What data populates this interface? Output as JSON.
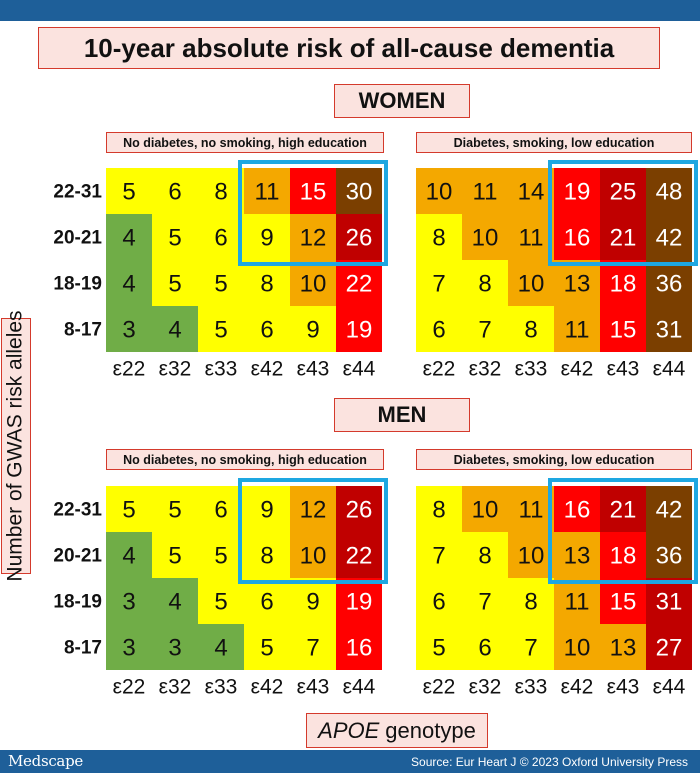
{
  "title": "10-year absolute risk of all-cause dementia",
  "sections": {
    "women": "WOMEN",
    "men": "MEN"
  },
  "y_axis_label": "Number of GWAS risk alleles",
  "x_axis_label": {
    "italic": "APOE",
    "rest": "genotype"
  },
  "footer": {
    "logo": "Medscape",
    "source": "Source: Eur Heart J © 2023 Oxford University Press"
  },
  "colors": {
    "green": "#70ad47",
    "yellow": "#ffff00",
    "orange": "#f4a800",
    "red": "#ff0000",
    "darkred": "#c00000",
    "brown": "#7b3f00",
    "highlight": "#1ea7e1",
    "header": "#1e5f99"
  },
  "chart_data": [
    {
      "type": "heatmap",
      "group": "WOMEN",
      "subtitle": "No diabetes, no smoking, high education",
      "rows": [
        "22-31",
        "20-21",
        "18-19",
        "8-17"
      ],
      "columns": [
        "ε22",
        "ε32",
        "ε33",
        "ε42",
        "ε43",
        "ε44"
      ],
      "values": [
        [
          5,
          6,
          8,
          11,
          15,
          30
        ],
        [
          4,
          5,
          6,
          9,
          12,
          26
        ],
        [
          4,
          5,
          5,
          8,
          10,
          22
        ],
        [
          3,
          4,
          5,
          6,
          9,
          19
        ]
      ],
      "cell_colors": [
        [
          "yellow",
          "yellow",
          "yellow",
          "orange",
          "red",
          "brown"
        ],
        [
          "green",
          "yellow",
          "yellow",
          "yellow",
          "orange",
          "darkred"
        ],
        [
          "green",
          "yellow",
          "yellow",
          "yellow",
          "orange",
          "red"
        ],
        [
          "green",
          "green",
          "yellow",
          "yellow",
          "yellow",
          "red"
        ]
      ],
      "highlight": {
        "rows": [
          0,
          1
        ],
        "columns": [
          3,
          5
        ]
      }
    },
    {
      "type": "heatmap",
      "group": "WOMEN",
      "subtitle": "Diabetes, smoking, low education",
      "rows": [
        "22-31",
        "20-21",
        "18-19",
        "8-17"
      ],
      "columns": [
        "ε22",
        "ε32",
        "ε33",
        "ε42",
        "ε43",
        "ε44"
      ],
      "values": [
        [
          10,
          11,
          14,
          19,
          25,
          48
        ],
        [
          8,
          10,
          11,
          16,
          21,
          42
        ],
        [
          7,
          8,
          10,
          13,
          18,
          36
        ],
        [
          6,
          7,
          8,
          11,
          15,
          31
        ]
      ],
      "cell_colors": [
        [
          "orange",
          "orange",
          "orange",
          "red",
          "darkred",
          "brown"
        ],
        [
          "yellow",
          "orange",
          "orange",
          "red",
          "darkred",
          "brown"
        ],
        [
          "yellow",
          "yellow",
          "orange",
          "orange",
          "red",
          "brown"
        ],
        [
          "yellow",
          "yellow",
          "yellow",
          "orange",
          "red",
          "brown"
        ]
      ],
      "highlight": {
        "rows": [
          0,
          1
        ],
        "columns": [
          3,
          5
        ]
      }
    },
    {
      "type": "heatmap",
      "group": "MEN",
      "subtitle": "No diabetes, no smoking, high education",
      "rows": [
        "22-31",
        "20-21",
        "18-19",
        "8-17"
      ],
      "columns": [
        "ε22",
        "ε32",
        "ε33",
        "ε42",
        "ε43",
        "ε44"
      ],
      "values": [
        [
          5,
          5,
          6,
          9,
          12,
          26
        ],
        [
          4,
          5,
          5,
          8,
          10,
          22
        ],
        [
          3,
          4,
          5,
          6,
          9,
          19
        ],
        [
          3,
          3,
          4,
          5,
          7,
          16
        ]
      ],
      "cell_colors": [
        [
          "yellow",
          "yellow",
          "yellow",
          "yellow",
          "orange",
          "darkred"
        ],
        [
          "green",
          "yellow",
          "yellow",
          "yellow",
          "orange",
          "darkred"
        ],
        [
          "green",
          "green",
          "yellow",
          "yellow",
          "yellow",
          "red"
        ],
        [
          "green",
          "green",
          "green",
          "yellow",
          "yellow",
          "red"
        ]
      ],
      "highlight": {
        "rows": [
          0,
          1
        ],
        "columns": [
          3,
          5
        ]
      }
    },
    {
      "type": "heatmap",
      "group": "MEN",
      "subtitle": "Diabetes, smoking, low education",
      "rows": [
        "22-31",
        "20-21",
        "18-19",
        "8-17"
      ],
      "columns": [
        "ε22",
        "ε32",
        "ε33",
        "ε42",
        "ε43",
        "ε44"
      ],
      "values": [
        [
          8,
          10,
          11,
          16,
          21,
          42
        ],
        [
          7,
          8,
          10,
          13,
          18,
          36
        ],
        [
          6,
          7,
          8,
          11,
          15,
          31
        ],
        [
          5,
          6,
          7,
          10,
          13,
          27
        ]
      ],
      "cell_colors": [
        [
          "yellow",
          "orange",
          "orange",
          "red",
          "darkred",
          "brown"
        ],
        [
          "yellow",
          "yellow",
          "orange",
          "orange",
          "red",
          "brown"
        ],
        [
          "yellow",
          "yellow",
          "yellow",
          "orange",
          "red",
          "darkred"
        ],
        [
          "yellow",
          "yellow",
          "yellow",
          "orange",
          "orange",
          "darkred"
        ]
      ],
      "highlight": {
        "rows": [
          0,
          1
        ],
        "columns": [
          3,
          5
        ]
      }
    }
  ]
}
